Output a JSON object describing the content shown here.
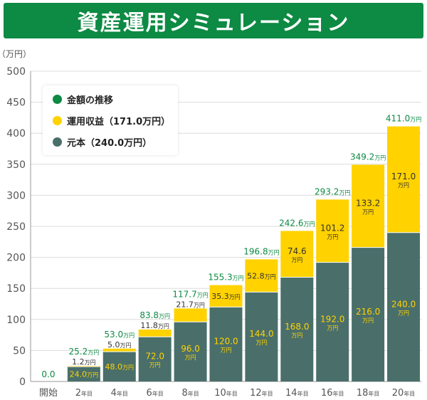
{
  "header": {
    "title": "資産運用シミュレーション"
  },
  "colors": {
    "header_bg": "#0d8a43",
    "principal": "#4a6f6a",
    "gain": "#ffd200",
    "total_text": "#0d8a43",
    "grid": "#dcdcdc",
    "axis_text": "#555555"
  },
  "legend": [
    {
      "label": "金額の推移",
      "color": "#0d8a43"
    },
    {
      "label": "運用収益（171.0万円）",
      "color": "#ffd200"
    },
    {
      "label": "元本（240.0万円）",
      "color": "#4a6f6a"
    }
  ],
  "chart_data": {
    "type": "bar",
    "stacked": true,
    "ylabel": "（万円）",
    "ylim": [
      0,
      500
    ],
    "yticks": [
      0,
      50,
      100,
      150,
      200,
      250,
      300,
      350,
      400,
      450,
      500
    ],
    "unit": "万円",
    "categories": [
      "開始",
      "2年目",
      "4年目",
      "6年目",
      "8年目",
      "10年目",
      "12年目",
      "14年目",
      "16年目",
      "18年目",
      "20年目"
    ],
    "series": [
      {
        "name": "元本",
        "values": [
          0,
          24.0,
          48.0,
          72.0,
          96.0,
          120.0,
          144.0,
          168.0,
          192.0,
          216.0,
          240.0
        ]
      },
      {
        "name": "運用収益",
        "values": [
          0,
          1.2,
          5.0,
          11.8,
          21.7,
          35.3,
          52.8,
          74.6,
          101.2,
          133.2,
          171.0
        ]
      }
    ],
    "totals": [
      0.0,
      25.2,
      53.0,
      83.8,
      117.7,
      155.3,
      196.8,
      242.6,
      293.2,
      349.2,
      411.0
    ],
    "grid": true,
    "legend_position": "top-left"
  }
}
